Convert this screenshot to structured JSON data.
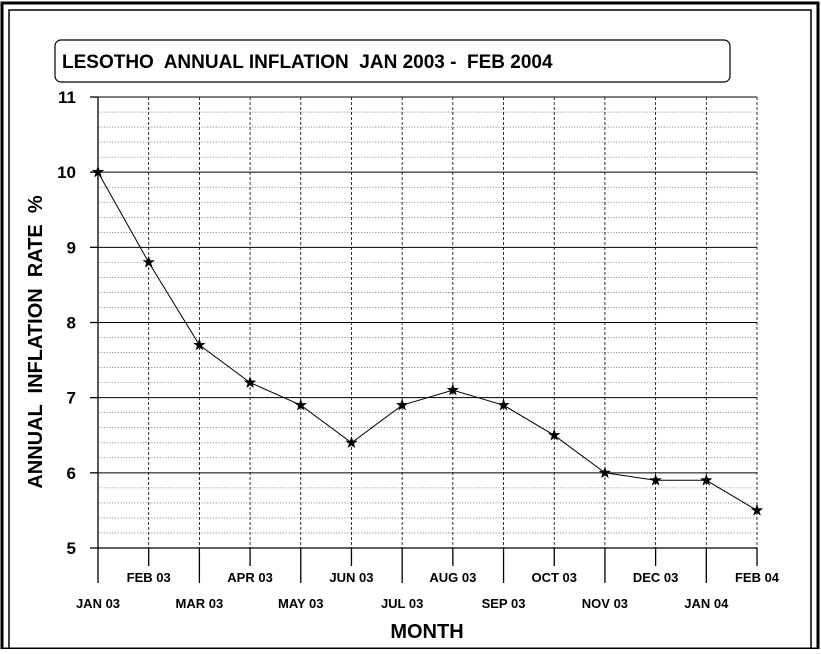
{
  "chart_data": {
    "type": "line",
    "title": "LESOTHO  ANNUAL INFLATION  JAN 2003 -  FEB 2004",
    "xlabel": "MONTH",
    "ylabel": "ANNUAL  INFLATION  RATE  %",
    "ylim": [
      5,
      11
    ],
    "y_ticks": [
      "5",
      "6",
      "7",
      "8",
      "9",
      "10",
      "11"
    ],
    "grid": true,
    "marker": "star",
    "categories": [
      "JAN 03",
      "FEB 03",
      "MAR 03",
      "APR 03",
      "MAY 03",
      "JUN 03",
      "JUL 03",
      "AUG 03",
      "SEP 03",
      "OCT 03",
      "NOV 03",
      "DEC 03",
      "JAN 04",
      "FEB 04"
    ],
    "series": [
      {
        "values": [
          10.0,
          8.8,
          7.7,
          7.2,
          6.9,
          6.4,
          6.9,
          7.1,
          6.9,
          6.5,
          6.0,
          5.9,
          5.9,
          5.5
        ]
      }
    ]
  }
}
